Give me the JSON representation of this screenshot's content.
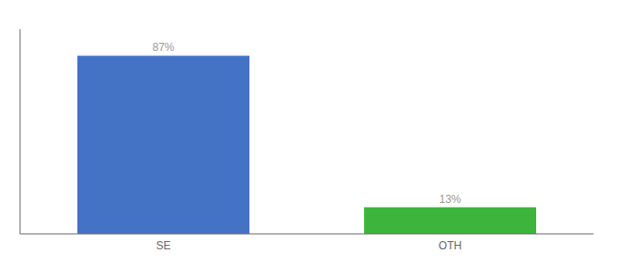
{
  "chart_data": {
    "type": "bar",
    "categories": [
      "SE",
      "OTH"
    ],
    "values": [
      87,
      13
    ],
    "value_labels": [
      "87%",
      "13%"
    ],
    "colors": [
      "#4472c4",
      "#3db53d"
    ],
    "ylim": [
      0,
      100
    ],
    "tick_labels": "x",
    "data_labels": true,
    "grid": false
  }
}
